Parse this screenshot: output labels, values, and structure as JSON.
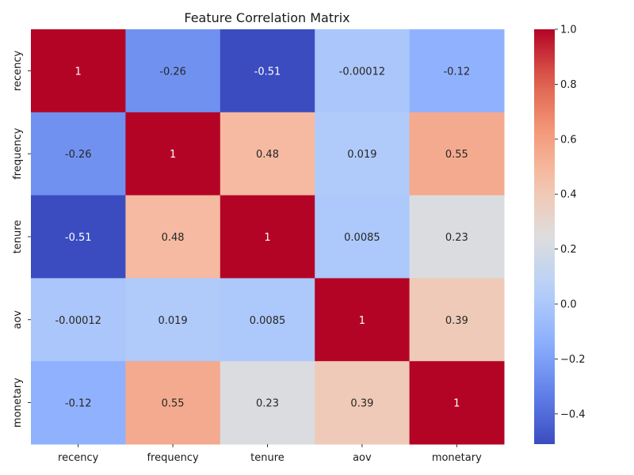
{
  "chart_data": {
    "type": "heatmap",
    "title": "Feature Correlation Matrix",
    "xlabel": "",
    "ylabel": "",
    "x_categories": [
      "recency",
      "frequency",
      "tenure",
      "aov",
      "monetary"
    ],
    "y_categories": [
      "recency",
      "frequency",
      "tenure",
      "aov",
      "monetary"
    ],
    "values": [
      [
        1,
        -0.26,
        -0.51,
        -0.00012,
        -0.12
      ],
      [
        -0.26,
        1,
        0.48,
        0.019,
        0.55
      ],
      [
        -0.51,
        0.48,
        1,
        0.0085,
        0.23
      ],
      [
        -0.00012,
        0.019,
        0.0085,
        1,
        0.39
      ],
      [
        -0.12,
        0.55,
        0.23,
        0.39,
        1
      ]
    ],
    "cell_labels": [
      [
        "1",
        "-0.26",
        "-0.51",
        "-0.00012",
        "-0.12"
      ],
      [
        "-0.26",
        "1",
        "0.48",
        "0.019",
        "0.55"
      ],
      [
        "-0.51",
        "0.48",
        "1",
        "0.0085",
        "0.23"
      ],
      [
        "-0.00012",
        "0.019",
        "0.0085",
        "1",
        "0.39"
      ],
      [
        "-0.12",
        "0.55",
        "0.23",
        "0.39",
        "1"
      ]
    ],
    "colormap": "coolwarm",
    "color_range": [
      -0.51,
      1.0
    ],
    "colorbar": {
      "ticks": [
        -0.4,
        -0.2,
        0.0,
        0.2,
        0.4,
        0.6,
        0.8,
        1.0
      ],
      "tick_labels": [
        "−0.4",
        "−0.2",
        "0.0",
        "0.2",
        "0.4",
        "0.6",
        "0.8",
        "1.0"
      ],
      "placement": "right"
    },
    "grid": false
  }
}
